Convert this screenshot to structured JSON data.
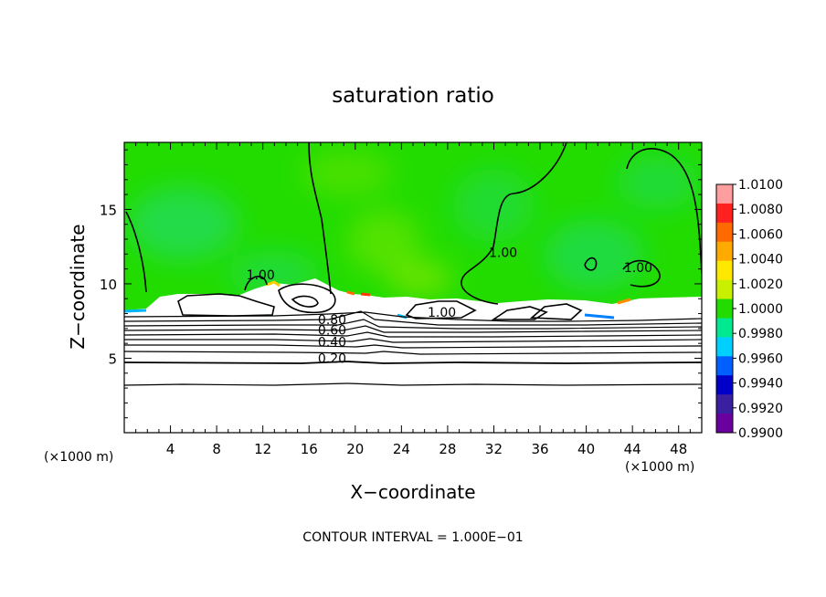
{
  "chart_data": {
    "type": "heatmap",
    "title": "saturation ratio",
    "xlabel": "X−coordinate",
    "ylabel": "Z−coordinate",
    "x_unit_left": "(×1000 m)",
    "x_unit_right": "(×1000 m)",
    "footer": "CONTOUR INTERVAL = 1.000E−01",
    "xlim": [
      0,
      50
    ],
    "ylim": [
      0,
      19.5
    ],
    "x_ticks": [
      4,
      8,
      12,
      16,
      20,
      24,
      28,
      32,
      36,
      40,
      44,
      48
    ],
    "y_ticks": [
      5,
      10,
      15
    ],
    "colorbar": {
      "labels": [
        "1.0100",
        "1.0080",
        "1.0060",
        "1.0040",
        "1.0020",
        "1.0000",
        "0.9980",
        "0.9960",
        "0.9940",
        "0.9920",
        "0.9900"
      ],
      "colors": [
        "#ff9e9e",
        "#ff2020",
        "#ff6a00",
        "#ffaa00",
        "#ffe800",
        "#c8f000",
        "#22dc00",
        "#00e890",
        "#00d0ff",
        "#0060ff",
        "#0000c8",
        "#3a1fa0",
        "#6a00a0"
      ]
    },
    "contour_labels": [
      {
        "text": "1.00",
        "x": 11.8,
        "y": 10.3
      },
      {
        "text": "1.00",
        "x": 27.5,
        "y": 7.8
      },
      {
        "text": "1.00",
        "x": 32.8,
        "y": 11.8
      },
      {
        "text": "1.00",
        "x": 44.5,
        "y": 10.8
      },
      {
        "text": "0.80",
        "x": 18.0,
        "y": 7.3
      },
      {
        "text": "0.60",
        "x": 18.0,
        "y": 6.6
      },
      {
        "text": "0.40",
        "x": 18.0,
        "y": 5.8
      },
      {
        "text": "0.20",
        "x": 18.0,
        "y": 4.7
      }
    ]
  }
}
